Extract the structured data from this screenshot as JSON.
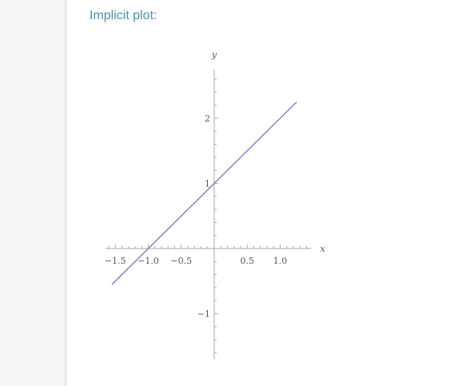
{
  "pod": {
    "title": "Implicit plot:"
  },
  "chart_data": {
    "type": "line",
    "title": "",
    "xlabel": "x",
    "ylabel": "y",
    "xlim": [
      -1.6,
      1.4
    ],
    "ylim": [
      -1.7,
      2.75
    ],
    "x_ticks": [
      {
        "value": -1.5,
        "label": "−1.5"
      },
      {
        "value": -1.0,
        "label": "−1.0"
      },
      {
        "value": -0.5,
        "label": "−0.5"
      },
      {
        "value": 0.5,
        "label": "0.5"
      },
      {
        "value": 1.0,
        "label": "1.0"
      }
    ],
    "y_ticks": [
      {
        "value": 2,
        "label": "2"
      },
      {
        "value": 1,
        "label": "1"
      },
      {
        "value": -1,
        "label": "−1"
      }
    ],
    "grid": false,
    "series": [
      {
        "x": [
          -1.55,
          1.25
        ],
        "y": [
          -0.55,
          2.25
        ],
        "color": "#8884c4"
      }
    ]
  }
}
